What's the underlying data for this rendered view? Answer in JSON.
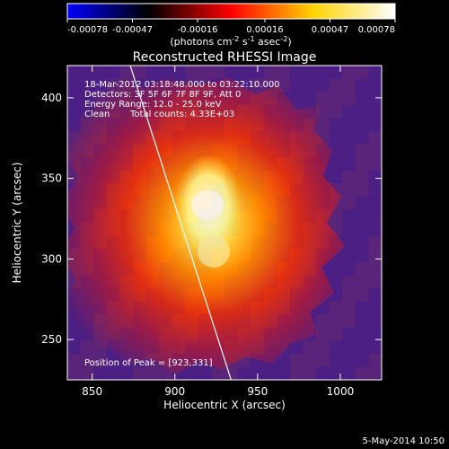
{
  "colorbar": {
    "ticks": [
      "-0.00078",
      "-0.00047",
      "-0.00016",
      "0.00016",
      "0.00047",
      "0.00078"
    ],
    "tick_values": [
      -0.00078,
      -0.00047,
      -0.00016,
      0.00016,
      0.00047,
      0.00078
    ],
    "range": [
      -0.00078,
      0.00078
    ],
    "unit_text": "(photons cm",
    "unit_sup1": "-2",
    "unit_mid": " s",
    "unit_sup2": "-1",
    "unit_end": " asec",
    "unit_sup3": "-2",
    "unit_close": ")",
    "colors": [
      "#0000ff",
      "#000000",
      "#ff0000",
      "#ffd400",
      "#ffffff"
    ]
  },
  "plot": {
    "title": "Reconstructed RHESSI Image",
    "annotations": {
      "time_range": "18-Mar-2012 03:18:48.000 to 03:22:10.000",
      "detectors": "Detectors: 3F 5F 6F 7F 8F 9F, Att 0",
      "energy_range": "Energy Range: 12.0 - 25.0 keV",
      "clean_label": "Clean",
      "total_counts": "Total counts: 4.33E+03",
      "peak_position": "Position of Peak = [923,331]"
    },
    "footer_date": "5-May-2014 10:50"
  },
  "chart_data": {
    "type": "heatmap",
    "title": "Reconstructed RHESSI Image",
    "xlabel": "Heliocentric X (arcsec)",
    "ylabel": "Heliocentric Y (arcsec)",
    "xlim": [
      835,
      1025
    ],
    "ylim": [
      225,
      420
    ],
    "x_ticks": [
      850,
      900,
      950,
      1000
    ],
    "y_ticks": [
      250,
      300,
      350,
      400
    ],
    "peak": [
      923,
      331
    ],
    "limb_line": [
      [
        873,
        420
      ],
      [
        934,
        225
      ]
    ],
    "background_color": "#4b1f84",
    "colormap": [
      "#4b1f84",
      "#8d1f58",
      "#d22a18",
      "#ff7a00",
      "#ffe34b",
      "#fffef0"
    ]
  }
}
